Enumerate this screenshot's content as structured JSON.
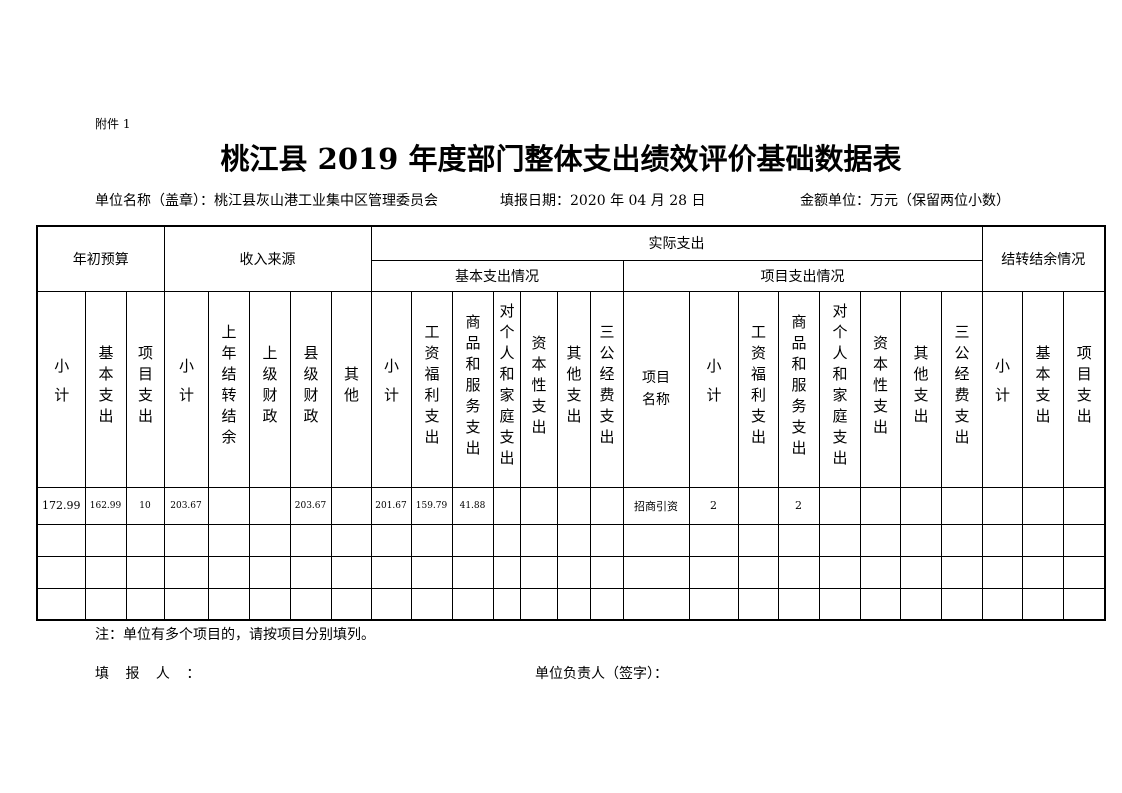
{
  "attachment": "附件 1",
  "title": "桃江县 2019 年度部门整体支出绩效评价基础数据表",
  "meta": {
    "unit": "单位名称（盖章）：桃江县灰山港工业集中区管理委员会",
    "date": "填报日期：2020 年 04 月 28 日",
    "currency": "金额单位：万元（保留两位小数）"
  },
  "groups": {
    "budget": "年初预算",
    "income": "收入来源",
    "actual": "实际支出",
    "basic": "基本支出情况",
    "project": "项目支出情况",
    "carry": "结转结余情况"
  },
  "columns": [
    "小计",
    "基本支出",
    "项目支出",
    "小计",
    "上年结转结余",
    "上级财政",
    "县级财政",
    "其他",
    "小计",
    "工资福利支出",
    "商品和服务支出",
    "对个人和家庭支出",
    "资本性支出",
    "其他支出",
    "三公经费支出",
    "项目名称",
    "小计",
    "工资福利支出",
    "商品和服务支出",
    "对个人和家庭支出",
    "资本性支出",
    "其他支出",
    "三公经费支出",
    "小计",
    "基本支出",
    "项目支出"
  ],
  "rows": [
    [
      "172.99",
      "162.99",
      "10",
      "203.67",
      "",
      "",
      "203.67",
      "",
      "201.67",
      "159.79",
      "41.88",
      "",
      "",
      "",
      "",
      "招商引资",
      "2",
      "",
      "2",
      "",
      "",
      "",
      "",
      "",
      "",
      ""
    ],
    [
      "",
      "",
      "",
      "",
      "",
      "",
      "",
      "",
      "",
      "",
      "",
      "",
      "",
      "",
      "",
      "",
      "",
      "",
      "",
      "",
      "",
      "",
      "",
      "",
      "",
      ""
    ],
    [
      "",
      "",
      "",
      "",
      "",
      "",
      "",
      "",
      "",
      "",
      "",
      "",
      "",
      "",
      "",
      "",
      "",
      "",
      "",
      "",
      "",
      "",
      "",
      "",
      "",
      ""
    ],
    [
      "",
      "",
      "",
      "",
      "",
      "",
      "",
      "",
      "",
      "",
      "",
      "",
      "",
      "",
      "",
      "",
      "",
      "",
      "",
      "",
      "",
      "",
      "",
      "",
      "",
      ""
    ]
  ],
  "note": "注：单位有多个项目的，请按项目分别填列。",
  "signatures": {
    "filler": "填 报 人 ：",
    "head": "单位负责人（签字）："
  }
}
